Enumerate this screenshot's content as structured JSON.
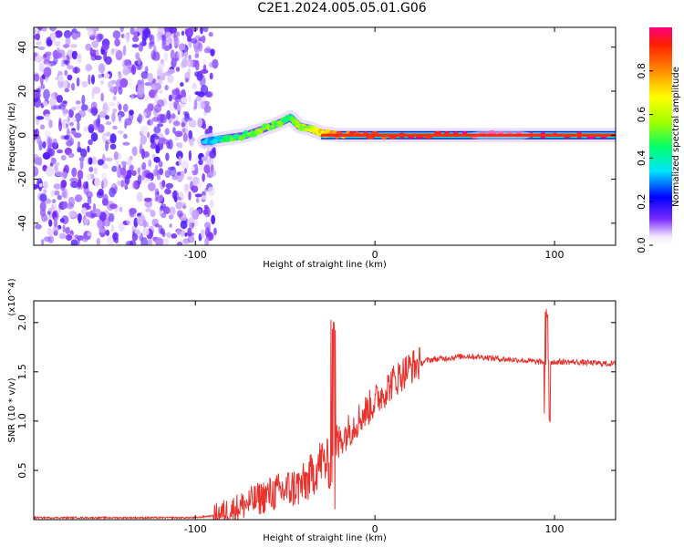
{
  "title": "C2E1.2024.005.05.01.G06",
  "chart_data": [
    {
      "type": "heatmap",
      "xlabel": "Height of straight line (km)",
      "ylabel": "Frequency (Hz)",
      "xlim": [
        -190,
        134
      ],
      "ylim": [
        -50,
        49
      ],
      "xticks": [
        "-100",
        "0",
        "100"
      ],
      "yticks": [
        "40",
        "20",
        "0",
        "-20",
        "-40"
      ],
      "colorbar": {
        "label": "Normalized spectral amplitude",
        "range": [
          0,
          1
        ],
        "ticks": [
          "0.0",
          "0.2",
          "0.4",
          "0.6",
          "0.8"
        ]
      },
      "noise_region_x": [
        -190,
        -93
      ],
      "trace": [
        {
          "x": -95,
          "y": -3,
          "amp": 0.3
        },
        {
          "x": -88,
          "y": -2,
          "amp": 0.35
        },
        {
          "x": -80,
          "y": -1,
          "amp": 0.45
        },
        {
          "x": -72,
          "y": 0,
          "amp": 0.5
        },
        {
          "x": -65,
          "y": 2,
          "amp": 0.55
        },
        {
          "x": -58,
          "y": 4,
          "amp": 0.55
        },
        {
          "x": -52,
          "y": 6,
          "amp": 0.5
        },
        {
          "x": -47,
          "y": 8,
          "amp": 0.45
        },
        {
          "x": -42,
          "y": 4,
          "amp": 0.55
        },
        {
          "x": -36,
          "y": 3,
          "amp": 0.6
        },
        {
          "x": -30,
          "y": 1,
          "amp": 0.7
        },
        {
          "x": -20,
          "y": 0,
          "amp": 0.8
        },
        {
          "x": 0,
          "y": 0,
          "amp": 0.9
        },
        {
          "x": 40,
          "y": 0,
          "amp": 0.95
        },
        {
          "x": 80,
          "y": 0,
          "amp": 0.95
        },
        {
          "x": 134,
          "y": 0,
          "amp": 0.95
        }
      ]
    },
    {
      "type": "line",
      "xlabel": "Height of straight line (km)",
      "ylabel": "SNR (10 * v/v)",
      "y_multiplier": "(x10^4)",
      "xlim": [
        -190,
        134
      ],
      "ylim": [
        0,
        2.22
      ],
      "xticks": [
        "-100",
        "0",
        "100"
      ],
      "yticks": [
        "0.5",
        "1.0",
        "1.5",
        "2.0"
      ],
      "series": [
        {
          "color": "#e8322e",
          "x": [
            -190,
            -100,
            -90,
            -80,
            -70,
            -60,
            -50,
            -40,
            -35,
            -30,
            -25,
            -22,
            -20,
            -15,
            -10,
            -5,
            0,
            5,
            10,
            15,
            20,
            30,
            40,
            50,
            60,
            70,
            80,
            90,
            95,
            97,
            100,
            110,
            120,
            134
          ],
          "y": [
            0.02,
            0.02,
            0.04,
            0.1,
            0.17,
            0.25,
            0.3,
            0.35,
            0.45,
            0.6,
            0.55,
            0.7,
            0.8,
            0.9,
            1.0,
            1.1,
            1.2,
            1.3,
            1.4,
            1.48,
            1.55,
            1.62,
            1.64,
            1.66,
            1.65,
            1.63,
            1.62,
            1.6,
            1.6,
            1.6,
            1.6,
            1.6,
            1.59,
            1.58
          ]
        }
      ],
      "annotations": [
        {
          "x": -23.5,
          "y_max": 2.05,
          "y_min": 0.05,
          "note": "spike"
        },
        {
          "x": 96,
          "y_max": 2.2,
          "y_min": 0.95,
          "note": "spike"
        }
      ]
    }
  ]
}
